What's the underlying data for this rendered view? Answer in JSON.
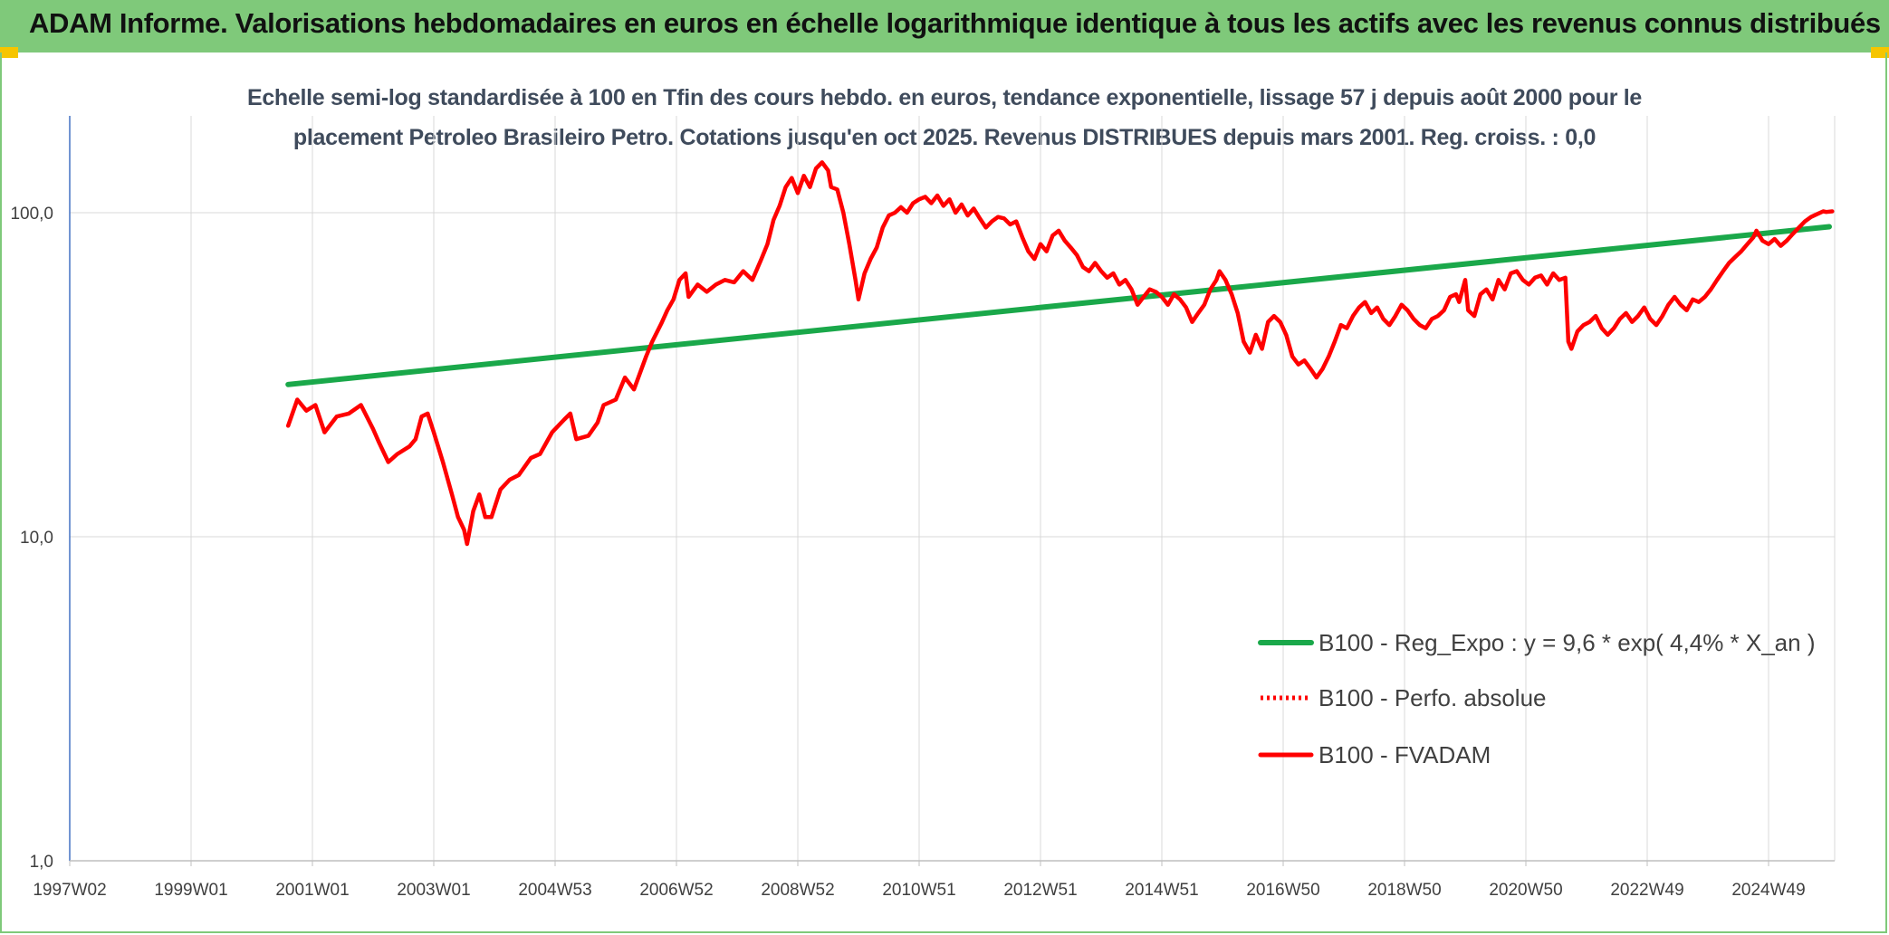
{
  "header": {
    "title": "ADAM Informe. Valorisations hebdomadaires en euros en échelle logarithmique identique à tous les actifs avec les revenus connus distribués",
    "background": "#7fc97a",
    "corner_color": "#f6c500"
  },
  "chart_data": {
    "type": "line",
    "title_line1": "Echelle semi-log standardisée à 100 en Tfin des cours hebdo. en euros, tendance exponentielle, lissage 57 j depuis août 2000 pour le",
    "title_line2": "placement Petroleo Brasileiro Petro. Cotations jusqu'en oct 2025. Revenus DISTRIBUES depuis mars 2001. Reg. croiss. : 0,0",
    "yscale": "log",
    "ylim": [
      1,
      200
    ],
    "y_ticks": [
      {
        "value": 1,
        "label": "1,0"
      },
      {
        "value": 10,
        "label": "10,0"
      },
      {
        "value": 100,
        "label": "100,0"
      }
    ],
    "xlim": [
      1997.0,
      2026.1
    ],
    "x_ticks": [
      {
        "x": 1997.0,
        "label": "1997W02"
      },
      {
        "x": 1999.0,
        "label": "1999W01"
      },
      {
        "x": 2001.0,
        "label": "2001W01"
      },
      {
        "x": 2003.0,
        "label": "2003W01"
      },
      {
        "x": 2005.0,
        "label": "2004W53"
      },
      {
        "x": 2007.0,
        "label": "2006W52"
      },
      {
        "x": 2009.0,
        "label": "2008W52"
      },
      {
        "x": 2011.0,
        "label": "2010W51"
      },
      {
        "x": 2013.0,
        "label": "2012W51"
      },
      {
        "x": 2015.0,
        "label": "2014W51"
      },
      {
        "x": 2017.0,
        "label": "2016W50"
      },
      {
        "x": 2019.0,
        "label": "2018W50"
      },
      {
        "x": 2021.0,
        "label": "2020W50"
      },
      {
        "x": 2023.0,
        "label": "2022W49"
      },
      {
        "x": 2025.0,
        "label": "2024W49"
      }
    ],
    "grid": true,
    "legend_position": "lower-right",
    "series": [
      {
        "name": "B100 - Reg_Expo : y = 9,6 * exp( 4,4% *  X_an )",
        "color": "#1aa84a",
        "style": "solid",
        "points": [
          [
            2000.6,
            29.5
          ],
          [
            2026.0,
            90.5
          ]
        ]
      },
      {
        "name": "B100 - Perfo. absolue",
        "color": "#ff0000",
        "style": "dotted",
        "points": []
      },
      {
        "name": "B100 - FVADAM",
        "color": "#ff0000",
        "style": "solid",
        "points": [
          [
            2000.6,
            22.0
          ],
          [
            2000.75,
            26.5
          ],
          [
            2000.9,
            24.5
          ],
          [
            2001.05,
            25.5
          ],
          [
            2001.2,
            21.0
          ],
          [
            2001.4,
            23.5
          ],
          [
            2001.6,
            24.0
          ],
          [
            2001.8,
            25.5
          ],
          [
            2002.0,
            21.5
          ],
          [
            2002.1,
            19.5
          ],
          [
            2002.25,
            17.0
          ],
          [
            2002.4,
            18.0
          ],
          [
            2002.6,
            19.0
          ],
          [
            2002.7,
            20.0
          ],
          [
            2002.8,
            23.5
          ],
          [
            2002.9,
            24.0
          ],
          [
            2003.0,
            21.0
          ],
          [
            2003.15,
            17.0
          ],
          [
            2003.3,
            13.5
          ],
          [
            2003.4,
            11.5
          ],
          [
            2003.5,
            10.5
          ],
          [
            2003.55,
            9.5
          ],
          [
            2003.65,
            12.0
          ],
          [
            2003.75,
            13.5
          ],
          [
            2003.85,
            11.5
          ],
          [
            2003.95,
            11.5
          ],
          [
            2004.1,
            14.0
          ],
          [
            2004.25,
            15.0
          ],
          [
            2004.4,
            15.5
          ],
          [
            2004.6,
            17.5
          ],
          [
            2004.75,
            18.0
          ],
          [
            2004.95,
            21.0
          ],
          [
            2005.15,
            23.0
          ],
          [
            2005.25,
            24.0
          ],
          [
            2005.35,
            20.0
          ],
          [
            2005.55,
            20.5
          ],
          [
            2005.7,
            22.5
          ],
          [
            2005.8,
            25.5
          ],
          [
            2006.0,
            26.5
          ],
          [
            2006.15,
            31.0
          ],
          [
            2006.3,
            28.5
          ],
          [
            2006.5,
            36.0
          ],
          [
            2006.6,
            40.0
          ],
          [
            2006.75,
            45.5
          ],
          [
            2006.85,
            50.0
          ],
          [
            2006.95,
            54.0
          ],
          [
            2007.05,
            62.0
          ],
          [
            2007.15,
            65.0
          ],
          [
            2007.2,
            55.0
          ],
          [
            2007.35,
            60.0
          ],
          [
            2007.5,
            57.0
          ],
          [
            2007.65,
            60.0
          ],
          [
            2007.8,
            62.0
          ],
          [
            2007.95,
            61.0
          ],
          [
            2008.1,
            66.0
          ],
          [
            2008.25,
            62.0
          ],
          [
            2008.4,
            72.0
          ],
          [
            2008.5,
            80.0
          ],
          [
            2008.6,
            95.0
          ],
          [
            2008.7,
            105.0
          ],
          [
            2008.8,
            120.0
          ],
          [
            2008.9,
            128.0
          ],
          [
            2009.0,
            115.0
          ],
          [
            2009.1,
            130.0
          ],
          [
            2009.2,
            120.0
          ],
          [
            2009.3,
            137.0
          ],
          [
            2009.4,
            143.0
          ],
          [
            2009.5,
            135.0
          ],
          [
            2009.55,
            120.0
          ],
          [
            2009.65,
            118.0
          ],
          [
            2009.75,
            100.0
          ],
          [
            2009.85,
            80.0
          ],
          [
            2009.95,
            62.0
          ],
          [
            2010.0,
            54.0
          ],
          [
            2010.1,
            65.0
          ],
          [
            2010.2,
            72.0
          ],
          [
            2010.3,
            78.0
          ],
          [
            2010.4,
            90.0
          ],
          [
            2010.5,
            98.0
          ],
          [
            2010.6,
            100.0
          ],
          [
            2010.7,
            104.0
          ],
          [
            2010.8,
            100.0
          ],
          [
            2010.9,
            107.0
          ],
          [
            2011.0,
            110.0
          ],
          [
            2011.1,
            112.0
          ],
          [
            2011.2,
            107.0
          ],
          [
            2011.3,
            113.0
          ],
          [
            2011.4,
            105.0
          ],
          [
            2011.5,
            110.0
          ],
          [
            2011.6,
            100.0
          ],
          [
            2011.7,
            106.0
          ],
          [
            2011.8,
            98.0
          ],
          [
            2011.9,
            103.0
          ],
          [
            2012.0,
            96.0
          ],
          [
            2012.1,
            90.0
          ],
          [
            2012.2,
            94.0
          ],
          [
            2012.3,
            97.0
          ],
          [
            2012.4,
            96.0
          ],
          [
            2012.5,
            92.0
          ],
          [
            2012.6,
            94.0
          ],
          [
            2012.7,
            84.0
          ],
          [
            2012.8,
            76.0
          ],
          [
            2012.9,
            72.0
          ],
          [
            2013.0,
            80.0
          ],
          [
            2013.1,
            76.0
          ],
          [
            2013.2,
            85.0
          ],
          [
            2013.3,
            88.0
          ],
          [
            2013.4,
            82.0
          ],
          [
            2013.5,
            78.0
          ],
          [
            2013.6,
            74.0
          ],
          [
            2013.7,
            68.0
          ],
          [
            2013.8,
            66.0
          ],
          [
            2013.9,
            70.0
          ],
          [
            2014.0,
            66.0
          ],
          [
            2014.1,
            63.0
          ],
          [
            2014.2,
            65.0
          ],
          [
            2014.3,
            60.0
          ],
          [
            2014.4,
            62.0
          ],
          [
            2014.5,
            58.0
          ],
          [
            2014.6,
            52.0
          ],
          [
            2014.7,
            55.0
          ],
          [
            2014.8,
            58.0
          ],
          [
            2014.9,
            57.0
          ],
          [
            2015.0,
            55.0
          ],
          [
            2015.1,
            52.0
          ],
          [
            2015.2,
            56.0
          ],
          [
            2015.3,
            54.0
          ],
          [
            2015.4,
            51.0
          ],
          [
            2015.5,
            46.0
          ],
          [
            2015.6,
            49.0
          ],
          [
            2015.7,
            52.0
          ],
          [
            2015.8,
            58.0
          ],
          [
            2015.9,
            62.0
          ],
          [
            2015.95,
            66.0
          ],
          [
            2016.05,
            62.0
          ],
          [
            2016.15,
            56.0
          ],
          [
            2016.25,
            49.0
          ],
          [
            2016.35,
            40.0
          ],
          [
            2016.45,
            37.0
          ],
          [
            2016.55,
            42.0
          ],
          [
            2016.65,
            38.0
          ],
          [
            2016.75,
            46.0
          ],
          [
            2016.85,
            48.0
          ],
          [
            2016.95,
            46.0
          ],
          [
            2017.05,
            42.0
          ],
          [
            2017.15,
            36.0
          ],
          [
            2017.25,
            34.0
          ],
          [
            2017.35,
            35.0
          ],
          [
            2017.45,
            33.0
          ],
          [
            2017.55,
            31.0
          ],
          [
            2017.65,
            33.0
          ],
          [
            2017.75,
            36.0
          ],
          [
            2017.85,
            40.0
          ],
          [
            2017.95,
            45.0
          ],
          [
            2018.05,
            44.0
          ],
          [
            2018.15,
            48.0
          ],
          [
            2018.25,
            51.0
          ],
          [
            2018.35,
            53.0
          ],
          [
            2018.45,
            49.0
          ],
          [
            2018.55,
            51.0
          ],
          [
            2018.65,
            47.0
          ],
          [
            2018.75,
            45.0
          ],
          [
            2018.85,
            48.0
          ],
          [
            2018.95,
            52.0
          ],
          [
            2019.05,
            50.0
          ],
          [
            2019.15,
            47.0
          ],
          [
            2019.25,
            45.0
          ],
          [
            2019.35,
            44.0
          ],
          [
            2019.45,
            47.0
          ],
          [
            2019.55,
            48.0
          ],
          [
            2019.65,
            50.0
          ],
          [
            2019.75,
            55.0
          ],
          [
            2019.85,
            56.0
          ],
          [
            2019.9,
            53.0
          ],
          [
            2020.0,
            62.0
          ],
          [
            2020.05,
            50.0
          ],
          [
            2020.15,
            48.0
          ],
          [
            2020.25,
            56.0
          ],
          [
            2020.35,
            58.0
          ],
          [
            2020.45,
            54.0
          ],
          [
            2020.55,
            62.0
          ],
          [
            2020.65,
            58.0
          ],
          [
            2020.75,
            65.0
          ],
          [
            2020.85,
            66.0
          ],
          [
            2020.95,
            62.0
          ],
          [
            2021.05,
            60.0
          ],
          [
            2021.15,
            63.0
          ],
          [
            2021.25,
            64.0
          ],
          [
            2021.35,
            60.0
          ],
          [
            2021.45,
            65.0
          ],
          [
            2021.55,
            62.0
          ],
          [
            2021.65,
            63.0
          ],
          [
            2021.7,
            40.0
          ],
          [
            2021.75,
            38.0
          ],
          [
            2021.85,
            43.0
          ],
          [
            2021.95,
            45.0
          ],
          [
            2022.05,
            46.0
          ],
          [
            2022.15,
            48.0
          ],
          [
            2022.25,
            44.0
          ],
          [
            2022.35,
            42.0
          ],
          [
            2022.45,
            44.0
          ],
          [
            2022.55,
            47.0
          ],
          [
            2022.65,
            49.0
          ],
          [
            2022.75,
            46.0
          ],
          [
            2022.85,
            48.0
          ],
          [
            2022.95,
            51.0
          ],
          [
            2023.05,
            47.0
          ],
          [
            2023.15,
            45.0
          ],
          [
            2023.25,
            48.0
          ],
          [
            2023.35,
            52.0
          ],
          [
            2023.45,
            55.0
          ],
          [
            2023.55,
            52.0
          ],
          [
            2023.65,
            50.0
          ],
          [
            2023.75,
            54.0
          ],
          [
            2023.85,
            53.0
          ],
          [
            2023.95,
            55.0
          ],
          [
            2024.05,
            58.0
          ],
          [
            2024.15,
            62.0
          ],
          [
            2024.25,
            66.0
          ],
          [
            2024.35,
            70.0
          ],
          [
            2024.45,
            73.0
          ],
          [
            2024.55,
            76.0
          ],
          [
            2024.65,
            80.0
          ],
          [
            2024.75,
            84.0
          ],
          [
            2024.8,
            88.0
          ],
          [
            2024.9,
            82.0
          ],
          [
            2025.0,
            80.0
          ],
          [
            2025.1,
            83.0
          ],
          [
            2025.2,
            79.0
          ],
          [
            2025.3,
            82.0
          ],
          [
            2025.4,
            86.0
          ],
          [
            2025.5,
            90.0
          ],
          [
            2025.6,
            94.0
          ],
          [
            2025.7,
            97.0
          ],
          [
            2025.8,
            99.0
          ],
          [
            2025.9,
            101.0
          ],
          [
            2025.95,
            100.5
          ],
          [
            2026.05,
            101.0
          ]
        ]
      }
    ]
  }
}
